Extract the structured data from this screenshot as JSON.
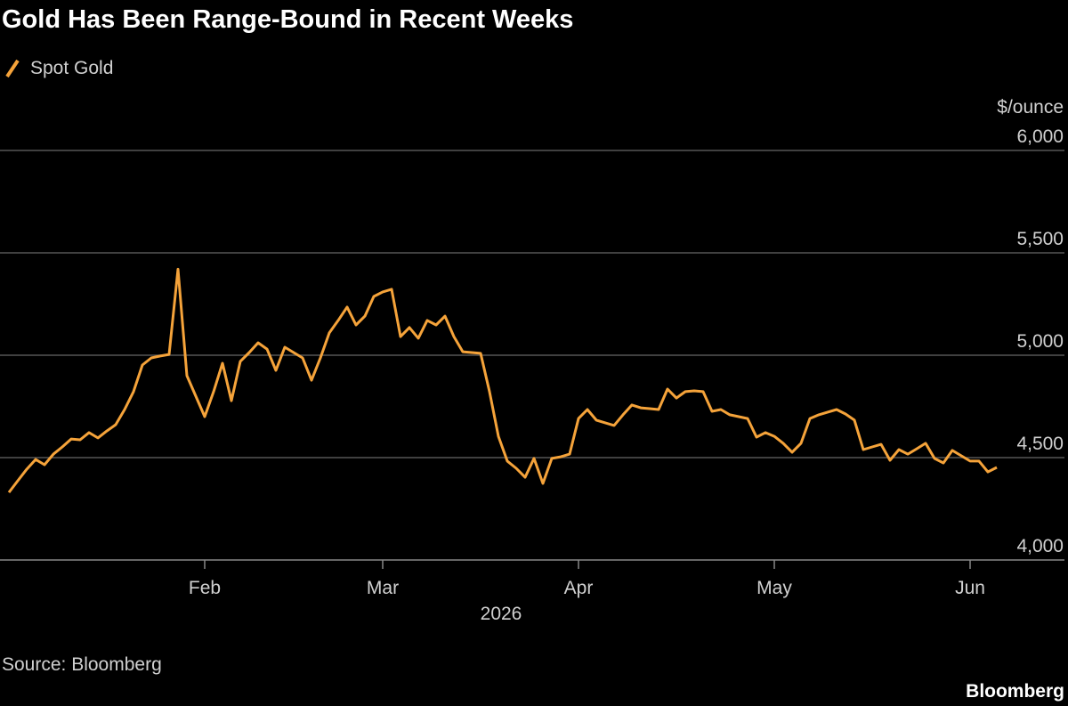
{
  "chart_data": {
    "type": "line",
    "title": "Gold Has Been Range-Bound in Recent Weeks",
    "ylabel": "$/ounce",
    "xlabel": "2026",
    "source": "Source: Bloomberg",
    "brand": "Bloomberg",
    "categories": [
      null,
      null,
      null,
      null,
      null,
      null,
      null,
      null,
      null,
      null,
      null,
      null,
      null,
      null,
      null,
      null,
      null,
      null,
      null,
      null,
      null,
      null,
      "Feb",
      null,
      null,
      null,
      null,
      null,
      null,
      null,
      null,
      null,
      null,
      null,
      null,
      null,
      null,
      null,
      null,
      null,
      null,
      null,
      "Mar",
      null,
      null,
      null,
      null,
      null,
      null,
      null,
      null,
      null,
      null,
      null,
      null,
      null,
      null,
      null,
      null,
      null,
      null,
      null,
      null,
      null,
      "Apr",
      null,
      null,
      null,
      null,
      null,
      null,
      null,
      null,
      null,
      null,
      null,
      null,
      null,
      null,
      null,
      null,
      null,
      null,
      null,
      null,
      null,
      "May",
      null,
      null,
      null,
      null,
      null,
      null,
      null,
      null,
      null,
      null,
      null,
      null,
      null,
      null,
      null,
      null,
      null,
      null,
      null,
      null,
      null,
      "Jun",
      null,
      null,
      null
    ],
    "series": [
      {
        "name": "Spot Gold",
        "color": "#f5a33a",
        "values": [
          4330,
          4387,
          4443,
          4491,
          4465,
          4517,
          4552,
          4591,
          4587,
          4622,
          4596,
          4630,
          4661,
          4735,
          4822,
          4952,
          4987,
          4996,
          5004,
          5420,
          4900,
          4800,
          4700,
          4822,
          4961,
          4778,
          4970,
          5013,
          5061,
          5030,
          4926,
          5039,
          5013,
          4987,
          4878,
          4987,
          5109,
          5170,
          5235,
          5148,
          5191,
          5287,
          5309,
          5322,
          5091,
          5135,
          5083,
          5170,
          5148,
          5191,
          5091,
          5017,
          5013,
          5009,
          4822,
          4604,
          4483,
          4448,
          4404,
          4496,
          4374,
          4496,
          4504,
          4517,
          4691,
          4735,
          4683,
          4670,
          4657,
          4709,
          4757,
          4743,
          4739,
          4735,
          4835,
          4791,
          4822,
          4826,
          4822,
          4726,
          4735,
          4709,
          4700,
          4691,
          4600,
          4622,
          4604,
          4570,
          4526,
          4570,
          4691,
          4709,
          4722,
          4735,
          4713,
          4683,
          4539,
          4552,
          4565,
          4487,
          4539,
          4517,
          4543,
          4570,
          4496,
          4474,
          4535,
          4509,
          4483,
          4483,
          4430,
          4452
        ]
      }
    ],
    "ylim": [
      4000,
      6000
    ],
    "yticks": [
      {
        "value": 4000,
        "label": "4,000"
      },
      {
        "value": 4500,
        "label": "4,500"
      },
      {
        "value": 5000,
        "label": "5,000"
      },
      {
        "value": 5500,
        "label": "5,500"
      },
      {
        "value": 6000,
        "label": "6,000"
      }
    ],
    "grid": true
  }
}
